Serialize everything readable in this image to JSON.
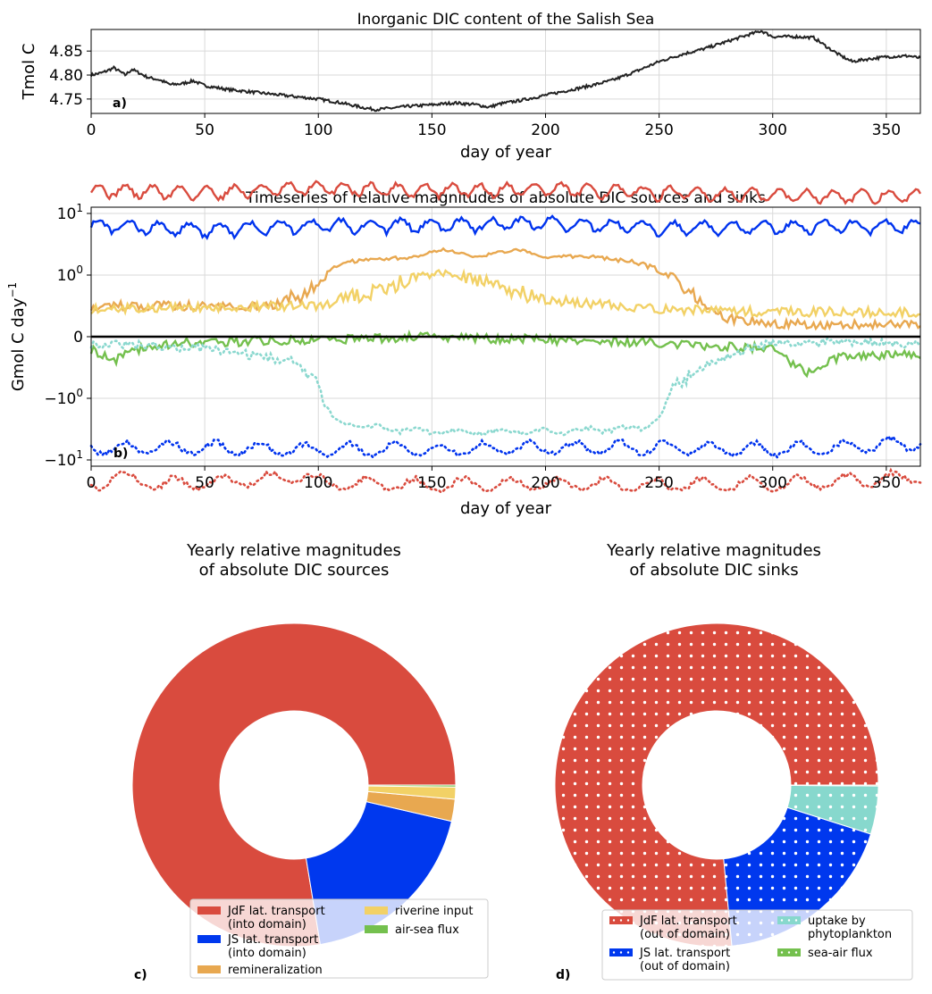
{
  "chart_data": [
    {
      "type": "line",
      "panel_label": "a)",
      "title": "Inorganic DIC content of the Salish Sea",
      "xlabel": "day of year",
      "ylabel": "Tmol C",
      "xlim": [
        0,
        365
      ],
      "ylim": [
        4.72,
        4.895
      ],
      "xticks": [
        0,
        50,
        100,
        150,
        200,
        250,
        300,
        350
      ],
      "yticks": [
        4.75,
        4.8,
        4.85
      ],
      "ytick_labels": [
        "4.75",
        "4.80",
        "4.85"
      ],
      "grid": true,
      "series": [
        {
          "color": "#222222",
          "points": [
            [
              0,
              4.8
            ],
            [
              5,
              4.805
            ],
            [
              10,
              4.815
            ],
            [
              15,
              4.8
            ],
            [
              18,
              4.812
            ],
            [
              25,
              4.795
            ],
            [
              30,
              4.79
            ],
            [
              35,
              4.78
            ],
            [
              40,
              4.782
            ],
            [
              45,
              4.788
            ],
            [
              50,
              4.778
            ],
            [
              60,
              4.77
            ],
            [
              70,
              4.765
            ],
            [
              80,
              4.76
            ],
            [
              90,
              4.755
            ],
            [
              100,
              4.75
            ],
            [
              110,
              4.742
            ],
            [
              120,
              4.732
            ],
            [
              125,
              4.728
            ],
            [
              130,
              4.73
            ],
            [
              140,
              4.735
            ],
            [
              150,
              4.738
            ],
            [
              160,
              4.742
            ],
            [
              170,
              4.738
            ],
            [
              175,
              4.733
            ],
            [
              180,
              4.74
            ],
            [
              190,
              4.748
            ],
            [
              200,
              4.758
            ],
            [
              210,
              4.768
            ],
            [
              220,
              4.778
            ],
            [
              230,
              4.79
            ],
            [
              240,
              4.808
            ],
            [
              250,
              4.828
            ],
            [
              260,
              4.843
            ],
            [
              270,
              4.855
            ],
            [
              280,
              4.87
            ],
            [
              290,
              4.885
            ],
            [
              295,
              4.892
            ],
            [
              300,
              4.88
            ],
            [
              310,
              4.88
            ],
            [
              318,
              4.878
            ],
            [
              325,
              4.855
            ],
            [
              330,
              4.84
            ],
            [
              335,
              4.828
            ],
            [
              340,
              4.832
            ],
            [
              350,
              4.838
            ],
            [
              360,
              4.84
            ],
            [
              365,
              4.835
            ]
          ]
        }
      ]
    },
    {
      "type": "line",
      "panel_label": "b)",
      "title": "Timeseries of relative magnitudes of absolute DIC sources and sinks",
      "xlabel": "day of year",
      "ylabel": "Gmol C day",
      "ylabel_superscript": "−1",
      "yscale": "symlog",
      "xlim": [
        0,
        365
      ],
      "xticks": [
        0,
        50,
        100,
        150,
        200,
        250,
        300,
        350
      ],
      "yticks": [
        10,
        1,
        0,
        -1,
        -10
      ],
      "ytick_labels": [
        {
          "base": "10",
          "exp": "1"
        },
        {
          "base": "10",
          "exp": "0"
        },
        {
          "base": "0",
          "exp": ""
        },
        {
          "base": "−10",
          "exp": "0"
        },
        {
          "base": "−10",
          "exp": "1"
        }
      ],
      "grid": true,
      "series": [
        {
          "color": "#d94b3e",
          "style": "solid",
          "points": [
            [
              0,
              24
            ],
            [
              50,
              22
            ],
            [
              100,
              26
            ],
            [
              150,
              24
            ],
            [
              200,
              25
            ],
            [
              250,
              22
            ],
            [
              300,
              20
            ],
            [
              365,
              19
            ]
          ]
        },
        {
          "color": "#0033ee",
          "style": "solid",
          "points": [
            [
              0,
              6.5
            ],
            [
              50,
              5.5
            ],
            [
              100,
              6.5
            ],
            [
              150,
              6.5
            ],
            [
              200,
              7
            ],
            [
              250,
              6
            ],
            [
              300,
              6
            ],
            [
              365,
              6.5
            ]
          ]
        },
        {
          "color": "#e8a850",
          "style": "solid",
          "points": [
            [
              0,
              0.5
            ],
            [
              80,
              0.5
            ],
            [
              100,
              0.8
            ],
            [
              110,
              1.5
            ],
            [
              120,
              1.8
            ],
            [
              140,
              1.9
            ],
            [
              155,
              2.6
            ],
            [
              170,
              2.0
            ],
            [
              188,
              2.6
            ],
            [
              200,
              2.0
            ],
            [
              220,
              2.0
            ],
            [
              240,
              1.6
            ],
            [
              260,
              0.8
            ],
            [
              280,
              0.3
            ],
            [
              300,
              0.2
            ],
            [
              365,
              0.2
            ]
          ]
        },
        {
          "color": "#f2d166",
          "style": "solid",
          "points": [
            [
              0,
              0.45
            ],
            [
              100,
              0.5
            ],
            [
              130,
              0.8
            ],
            [
              155,
              1.1
            ],
            [
              170,
              0.9
            ],
            [
              200,
              0.6
            ],
            [
              250,
              0.45
            ],
            [
              300,
              0.4
            ],
            [
              365,
              0.4
            ]
          ]
        },
        {
          "color": "#74c04e",
          "style": "solid",
          "points": [
            [
              0,
              -0.2
            ],
            [
              10,
              -0.4
            ],
            [
              20,
              -0.2
            ],
            [
              40,
              -0.1
            ],
            [
              100,
              -0.05
            ],
            [
              150,
              0
            ],
            [
              250,
              -0.1
            ],
            [
              300,
              -0.2
            ],
            [
              315,
              -0.6
            ],
            [
              330,
              -0.3
            ],
            [
              365,
              -0.3
            ]
          ]
        },
        {
          "color": "#8bd8cf",
          "style": "dotted",
          "points": [
            [
              0,
              -0.1
            ],
            [
              50,
              -0.2
            ],
            [
              90,
              -0.4
            ],
            [
              100,
              -0.8
            ],
            [
              110,
              -2.5
            ],
            [
              120,
              -3
            ],
            [
              150,
              -3.5
            ],
            [
              200,
              -3.5
            ],
            [
              245,
              -3
            ],
            [
              255,
              -0.8
            ],
            [
              280,
              -0.3
            ],
            [
              300,
              -0.1
            ],
            [
              365,
              -0.1
            ]
          ]
        },
        {
          "color": "#0033ee",
          "style": "dotted",
          "points": [
            [
              0,
              -6.5
            ],
            [
              50,
              -6.5
            ],
            [
              100,
              -7
            ],
            [
              150,
              -7
            ],
            [
              200,
              -6.5
            ],
            [
              250,
              -6.5
            ],
            [
              300,
              -7
            ],
            [
              365,
              -5.5
            ]
          ]
        },
        {
          "color": "#d94b3e",
          "style": "dotted",
          "points": [
            [
              0,
              -28
            ],
            [
              10,
              -18
            ],
            [
              30,
              -25
            ],
            [
              50,
              -24
            ],
            [
              95,
              -18
            ],
            [
              100,
              -24
            ],
            [
              150,
              -26
            ],
            [
              200,
              -25
            ],
            [
              250,
              -26
            ],
            [
              300,
              -25
            ],
            [
              360,
              -20
            ],
            [
              365,
              -18
            ]
          ]
        }
      ]
    },
    {
      "type": "pie",
      "panel_label": "c)",
      "title": "Yearly relative magnitudes",
      "title_line2": "of absolute DIC sources",
      "donut": true,
      "labels": [
        "JdF lat. transport (into domain)",
        "JS lat. transport (into domain)",
        "remineralization",
        "riverine input",
        "air-sea flux"
      ],
      "values": [
        77.6,
        18.8,
        2.2,
        1.2,
        0.2
      ],
      "colors": [
        "#d94b3e",
        "#0038ee",
        "#e8a850",
        "#f2d166",
        "#74c04e"
      ],
      "legend": {
        "position": "bottom",
        "col1": [
          {
            "color": "#d94b3e",
            "line1": "JdF lat. transport",
            "line2": " (into domain)"
          },
          {
            "color": "#0038ee",
            "line1": "JS lat. transport",
            "line2": " (into domain)"
          },
          {
            "color": "#e8a850",
            "line1": "remineralization",
            "line2": ""
          }
        ],
        "col2": [
          {
            "color": "#f2d166",
            "line1": "riverine input",
            "line2": ""
          },
          {
            "color": "#74c04e",
            "line1": "air-sea flux",
            "line2": ""
          }
        ]
      }
    },
    {
      "type": "pie",
      "panel_label": "d)",
      "title": "Yearly relative magnitudes",
      "title_line2": "of absolute DIC sinks",
      "donut": true,
      "hatch": "dots",
      "labels": [
        "JdF lat. transport (out of domain)",
        "JS lat. transport (out of domain)",
        "uptake by phytoplankton",
        "sea-air flux"
      ],
      "values": [
        76.5,
        18.6,
        4.8,
        0.1
      ],
      "colors": [
        "#d94b3e",
        "#0038ee",
        "#87d8cd",
        "#74c04e"
      ],
      "legend": {
        "position": "bottom",
        "col1": [
          {
            "color": "#d94b3e",
            "line1": "JdF lat. transport",
            "line2": " (out of domain)"
          },
          {
            "color": "#0038ee",
            "line1": "JS lat. transport",
            "line2": " (out of domain)"
          }
        ],
        "col2": [
          {
            "color": "#87d8cd",
            "line1": "uptake by",
            "line2": " phytoplankton"
          },
          {
            "color": "#74c04e",
            "line1": "sea-air flux",
            "line2": ""
          }
        ]
      }
    }
  ]
}
